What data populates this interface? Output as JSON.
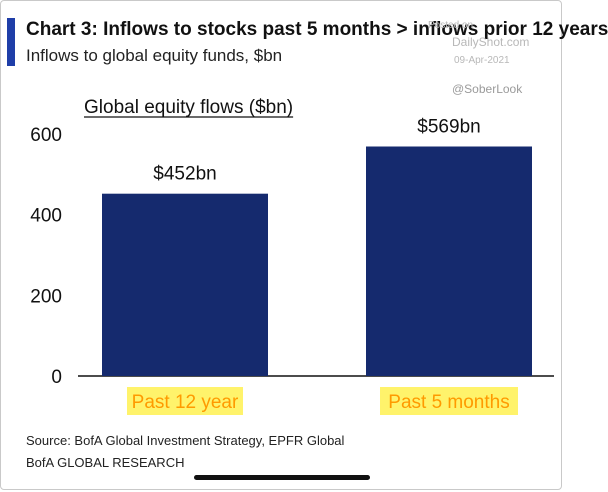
{
  "header": {
    "title": "Chart 3: Inflows to stocks past 5 months > inflows prior 12 years",
    "subtitle": "Inflows to global equity funds, $bn"
  },
  "watermark": {
    "posted": "Posted on",
    "site": "DailyShot.com",
    "date": "09-Apr-2021",
    "handle": "@SoberLook"
  },
  "footer": {
    "source": "Source: BofA Global Investment Strategy, EPFR Global",
    "brand": "BofA GLOBAL RESEARCH"
  },
  "colors": {
    "bar": "#152a6e",
    "accent": "#1f3ea8",
    "highlight": "#fff36b",
    "label_text": "#ff9a00"
  },
  "chart_data": {
    "type": "bar",
    "title": "Global equity flows ($bn)",
    "categories": [
      "Past 12 year",
      "Past 5 months"
    ],
    "values": [
      452,
      569
    ],
    "data_labels": [
      "$452bn",
      "$569bn"
    ],
    "ylim": [
      0,
      600
    ],
    "yticks": [
      0,
      200,
      400,
      600
    ],
    "grid": false,
    "legend": "none"
  }
}
